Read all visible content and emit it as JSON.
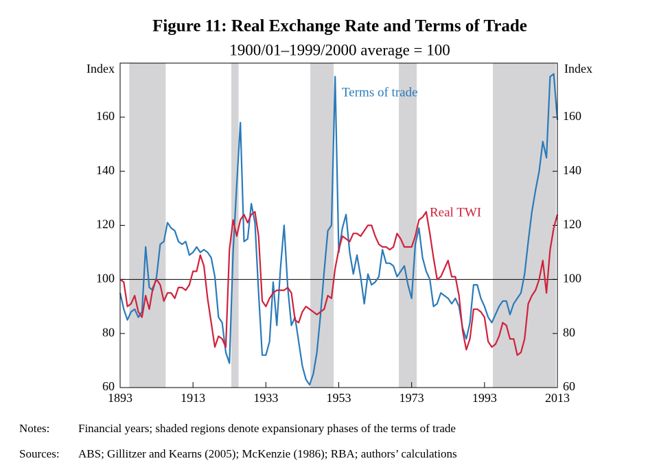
{
  "chart_data": {
    "type": "line",
    "title": "Figure 11: Real Exchange Rate and Terms of Trade",
    "subtitle": "1900/01–1999/2000 average = 100",
    "y_label": "Index",
    "y2_label": "Index",
    "x": [
      1893,
      1894,
      1895,
      1896,
      1897,
      1898,
      1899,
      1900,
      1901,
      1902,
      1903,
      1904,
      1905,
      1906,
      1907,
      1908,
      1909,
      1910,
      1911,
      1912,
      1913,
      1914,
      1915,
      1916,
      1917,
      1918,
      1919,
      1920,
      1921,
      1922,
      1923,
      1924,
      1925,
      1926,
      1927,
      1928,
      1929,
      1930,
      1931,
      1932,
      1933,
      1934,
      1935,
      1936,
      1937,
      1938,
      1939,
      1940,
      1941,
      1942,
      1943,
      1944,
      1945,
      1946,
      1947,
      1948,
      1949,
      1950,
      1951,
      1952,
      1953,
      1954,
      1955,
      1956,
      1957,
      1958,
      1959,
      1960,
      1961,
      1962,
      1963,
      1964,
      1965,
      1966,
      1967,
      1968,
      1969,
      1970,
      1971,
      1972,
      1973,
      1974,
      1975,
      1976,
      1977,
      1978,
      1979,
      1980,
      1981,
      1982,
      1983,
      1984,
      1985,
      1986,
      1987,
      1988,
      1989,
      1990,
      1991,
      1992,
      1993,
      1994,
      1995,
      1996,
      1997,
      1998,
      1999,
      2000,
      2001,
      2002,
      2003,
      2004,
      2005,
      2006,
      2007,
      2008,
      2009,
      2010,
      2011,
      2012,
      2013
    ],
    "series": [
      {
        "name": "Terms of trade",
        "color": "#2a7ab9",
        "values": [
          95,
          89,
          85,
          88,
          89,
          86,
          88,
          112,
          97,
          96,
          101,
          113,
          114,
          121,
          119,
          118,
          114,
          113,
          114,
          109,
          110,
          112,
          110,
          111,
          110,
          108,
          101,
          86,
          84,
          73,
          69,
          110,
          135,
          158,
          114,
          115,
          128,
          121,
          95,
          72,
          72,
          77,
          99,
          83,
          104,
          120,
          97,
          83,
          86,
          77,
          68,
          63,
          61,
          65,
          73,
          87,
          103,
          118,
          120,
          175,
          110,
          119,
          124,
          110,
          102,
          109,
          101,
          91,
          102,
          98,
          99,
          101,
          111,
          106,
          106,
          105,
          101,
          103,
          105,
          98,
          93,
          113,
          119,
          108,
          103,
          100,
          90,
          91,
          95,
          94,
          93,
          91,
          93,
          90,
          82,
          78,
          84,
          98,
          98,
          93,
          90,
          86,
          84,
          87,
          90,
          92,
          92,
          87,
          91,
          93,
          95,
          102,
          114,
          125,
          133,
          140,
          151,
          145,
          175,
          176,
          159
        ]
      },
      {
        "name": "Real TWI",
        "color": "#d0213a",
        "values": [
          100,
          99,
          90,
          91,
          94,
          88,
          86,
          94,
          89,
          97,
          100,
          98,
          92,
          95,
          95,
          93,
          97,
          97,
          96,
          98,
          103,
          103,
          109,
          105,
          93,
          84,
          75,
          79,
          78,
          75,
          111,
          122,
          116,
          122,
          124,
          121,
          124,
          125,
          116,
          92,
          90,
          93,
          95,
          96,
          96,
          96,
          97,
          95,
          85,
          84,
          88,
          90,
          89,
          88,
          87,
          88,
          89,
          94,
          93,
          104,
          111,
          116,
          115,
          114,
          117,
          117,
          116,
          118,
          120,
          120,
          116,
          113,
          112,
          112,
          111,
          112,
          117,
          115,
          112,
          112,
          112,
          116,
          122,
          123,
          125,
          117,
          108,
          100,
          101,
          104,
          107,
          101,
          101,
          94,
          81,
          74,
          78,
          89,
          89,
          88,
          86,
          77,
          75,
          76,
          79,
          84,
          83,
          78,
          78,
          72,
          73,
          78,
          91,
          94,
          96,
          100,
          107,
          95,
          111,
          119,
          124
        ]
      }
    ],
    "xlim": [
      1893,
      2013
    ],
    "xticks": [
      1893,
      1913,
      1933,
      1953,
      1973,
      1993,
      2013
    ],
    "ylim": [
      60,
      180
    ],
    "yticks": [
      60,
      80,
      100,
      120,
      140,
      160
    ],
    "y2lim": [
      60,
      180
    ],
    "y2ticks": [
      60,
      80,
      100,
      120,
      140,
      160
    ],
    "reference_line": 100,
    "shaded_regions": [
      [
        1895.5,
        1905.5
      ],
      [
        1923.5,
        1925.5
      ],
      [
        1945.2,
        1951.6
      ],
      [
        1969.5,
        1974.4
      ],
      [
        1995.3,
        2012.6
      ]
    ],
    "shade_color": "#d4d4d6",
    "notes": {
      "label": "Notes:",
      "text": "Financial years; shaded regions denote expansionary phases of the terms of trade"
    },
    "sources": {
      "label": "Sources:",
      "text": "ABS; Gillitzer and Kearns (2005); McKenzie (1986); RBA; authors’ calculations"
    }
  }
}
